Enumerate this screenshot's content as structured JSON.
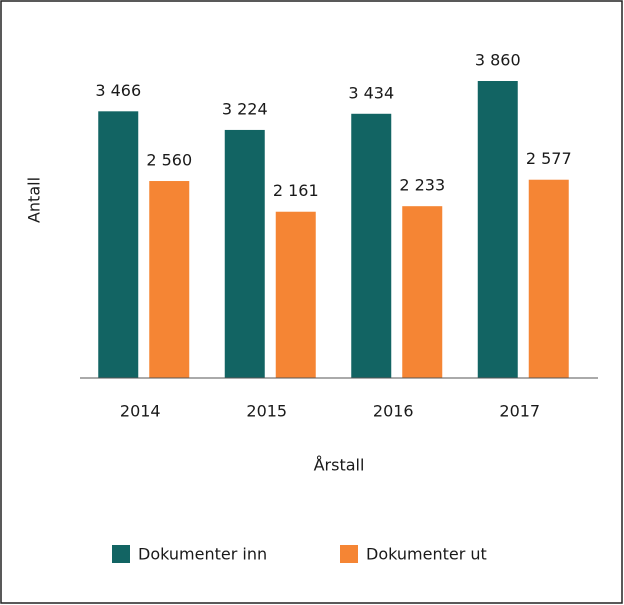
{
  "chart_data": {
    "type": "bar",
    "categories": [
      "2014",
      "2015",
      "2016",
      "2017"
    ],
    "series": [
      {
        "name": "Dokumenter inn",
        "color": "#126463",
        "values": [
          3466,
          3224,
          3434,
          3860
        ],
        "value_labels": [
          "3 466",
          "3 224",
          "3 434",
          "3 860"
        ]
      },
      {
        "name": "Dokumenter ut",
        "color": "#f58534",
        "values": [
          2560,
          2161,
          2233,
          2577
        ],
        "value_labels": [
          "2 560",
          "2 161",
          "2 233",
          "2 577"
        ]
      }
    ],
    "xlabel": "Årstall",
    "ylabel": "Antall",
    "legend": "bottom"
  }
}
